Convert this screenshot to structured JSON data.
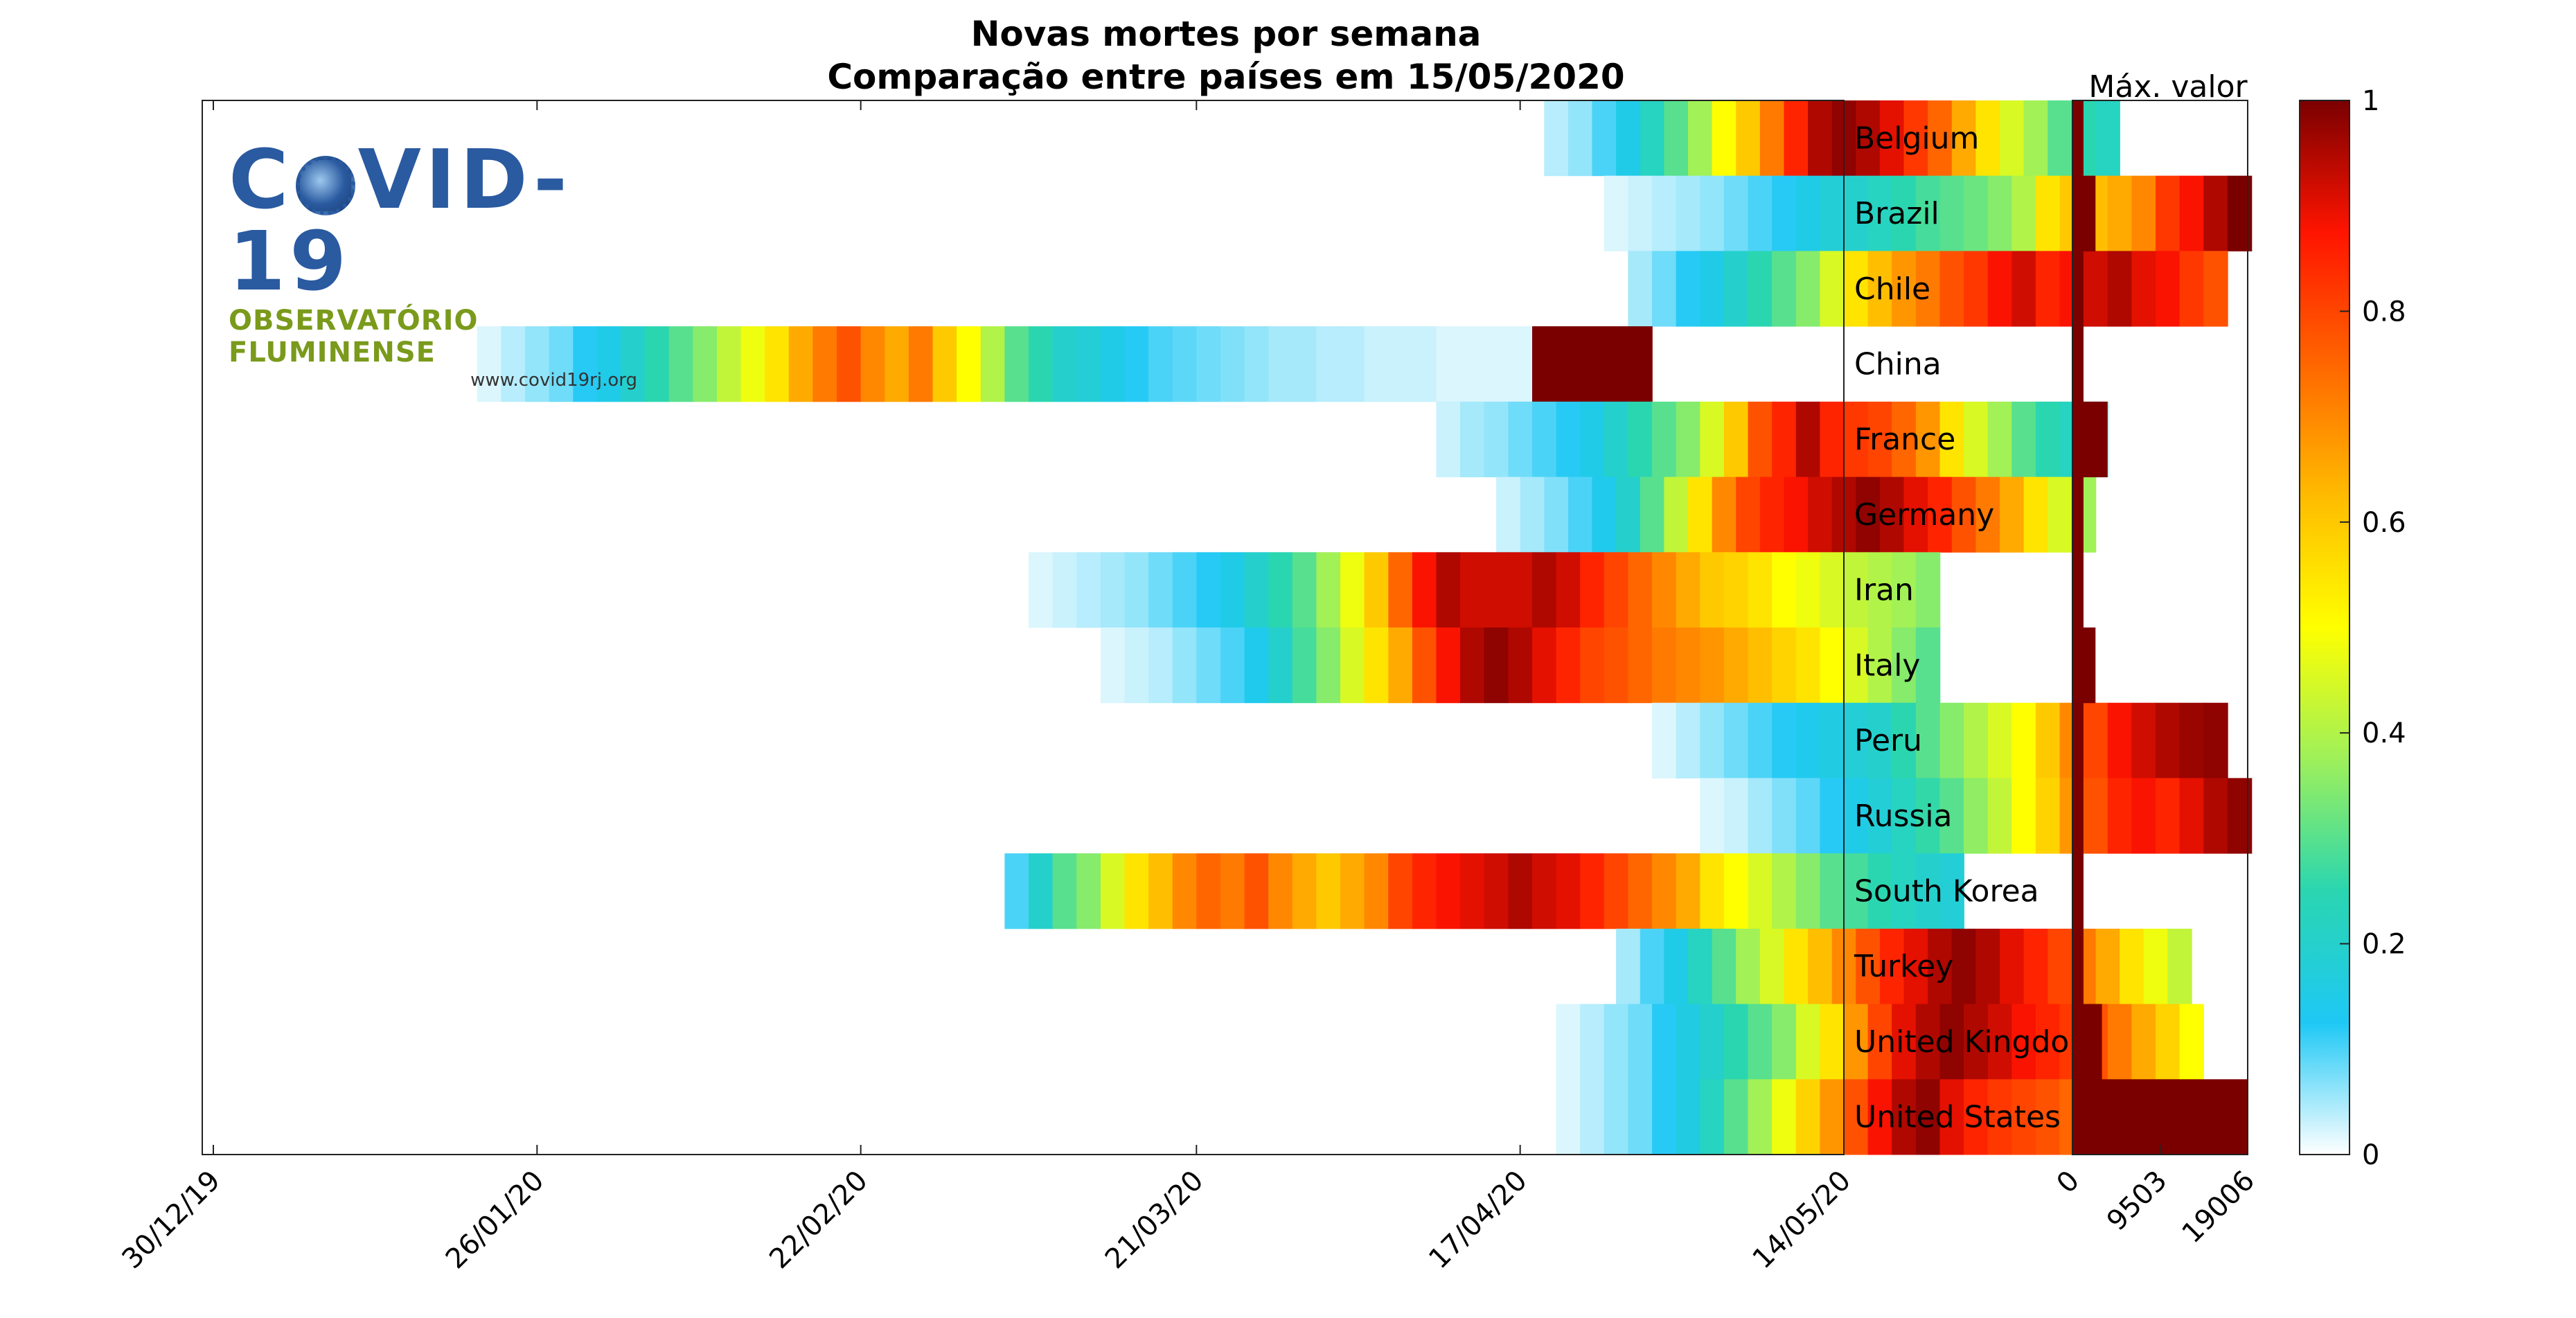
{
  "chart_data": {
    "type": "heatmap",
    "title": "Novas mortes por semana",
    "subtitle": "Comparação entre países em 15/05/2020",
    "x_ticks": [
      "30/12/19",
      "26/01/20",
      "22/02/20",
      "21/03/20",
      "17/04/20",
      "14/05/20"
    ],
    "x_range": [
      "30/12/19",
      "14/05/20"
    ],
    "countries": [
      "Belgium",
      "Brazil",
      "Chile",
      "China",
      "France",
      "Germany",
      "Iran",
      "Italy",
      "Peru",
      "Russia",
      "South Korea",
      "Turkey",
      "United Kingdom",
      "United States"
    ],
    "normalized_weekly_deaths": [
      {
        "start_day": 111,
        "values": [
          0.04,
          0.06,
          0.1,
          0.15,
          0.22,
          0.3,
          0.38,
          0.5,
          0.6,
          0.72,
          0.85,
          0.95,
          0.98,
          0.95,
          0.9,
          0.82,
          0.75,
          0.65,
          0.55,
          0.45,
          0.38,
          0.3,
          0.25,
          0.22
        ]
      },
      {
        "start_day": 116,
        "values": [
          0.02,
          0.03,
          0.04,
          0.05,
          0.06,
          0.08,
          0.1,
          0.12,
          0.15,
          0.18,
          0.2,
          0.22,
          0.25,
          0.28,
          0.3,
          0.32,
          0.35,
          0.4,
          0.55,
          0.6,
          0.62,
          0.65,
          0.7,
          0.82,
          0.88,
          0.95,
          1.0
        ]
      },
      {
        "start_day": 118,
        "values": [
          0.05,
          0.08,
          0.12,
          0.15,
          0.2,
          0.25,
          0.3,
          0.35,
          0.45,
          0.55,
          0.62,
          0.68,
          0.72,
          0.78,
          0.82,
          0.88,
          0.92,
          0.85,
          0.88,
          0.92,
          0.95,
          0.9,
          0.88,
          0.82,
          0.78
        ]
      },
      {
        "start_day": 22,
        "values": [
          0.02,
          0.04,
          0.06,
          0.08,
          0.12,
          0.15,
          0.2,
          0.25,
          0.3,
          0.35,
          0.42,
          0.48,
          0.55,
          0.65,
          0.72,
          0.78,
          0.7,
          0.65,
          0.72,
          0.6,
          0.5,
          0.4,
          0.3,
          0.25,
          0.2,
          0.18,
          0.15,
          0.12,
          0.1,
          0.09,
          0.08,
          0.07,
          0.06,
          0.05,
          0.05,
          0.04,
          0.04,
          0.03,
          0.03,
          0.03,
          0.02,
          0.02,
          0.02,
          0.02,
          1.0,
          1.0,
          1.0,
          1.0,
          1.0
        ]
      },
      {
        "start_day": 102,
        "values": [
          0.03,
          0.05,
          0.06,
          0.08,
          0.1,
          0.12,
          0.15,
          0.2,
          0.25,
          0.3,
          0.35,
          0.45,
          0.6,
          0.78,
          0.85,
          0.95,
          0.85,
          0.82,
          0.8,
          0.75,
          0.68,
          0.55,
          0.45,
          0.38,
          0.3,
          0.25,
          0.22,
          0.2
        ]
      },
      {
        "start_day": 107,
        "values": [
          0.03,
          0.05,
          0.07,
          0.1,
          0.14,
          0.2,
          0.3,
          0.42,
          0.55,
          0.7,
          0.8,
          0.85,
          0.88,
          0.92,
          0.95,
          0.98,
          0.95,
          0.9,
          0.85,
          0.78,
          0.72,
          0.65,
          0.55,
          0.45,
          0.38
        ]
      },
      {
        "start_day": 68,
        "values": [
          0.02,
          0.03,
          0.04,
          0.05,
          0.06,
          0.08,
          0.1,
          0.12,
          0.15,
          0.2,
          0.25,
          0.3,
          0.38,
          0.48,
          0.6,
          0.75,
          0.88,
          0.95,
          0.92,
          0.92,
          0.92,
          0.95,
          0.92,
          0.85,
          0.8,
          0.75,
          0.7,
          0.65,
          0.6,
          0.58,
          0.55,
          0.5,
          0.48,
          0.45,
          0.42,
          0.4,
          0.38,
          0.35
        ]
      },
      {
        "start_day": 74,
        "values": [
          0.02,
          0.03,
          0.04,
          0.06,
          0.08,
          0.1,
          0.14,
          0.2,
          0.28,
          0.35,
          0.45,
          0.55,
          0.65,
          0.78,
          0.88,
          0.95,
          0.98,
          0.95,
          0.9,
          0.85,
          0.8,
          0.78,
          0.75,
          0.72,
          0.7,
          0.68,
          0.65,
          0.62,
          0.58,
          0.55,
          0.5,
          0.45,
          0.4,
          0.35,
          0.3
        ]
      },
      {
        "start_day": 120,
        "values": [
          0.02,
          0.04,
          0.06,
          0.08,
          0.1,
          0.12,
          0.14,
          0.16,
          0.18,
          0.2,
          0.25,
          0.3,
          0.35,
          0.4,
          0.45,
          0.5,
          0.6,
          0.7,
          0.8,
          0.88,
          0.92,
          0.95,
          0.97,
          0.98
        ]
      },
      {
        "start_day": 124,
        "values": [
          0.02,
          0.03,
          0.05,
          0.07,
          0.09,
          0.12,
          0.15,
          0.18,
          0.22,
          0.26,
          0.3,
          0.36,
          0.42,
          0.5,
          0.58,
          0.68,
          0.78,
          0.85,
          0.88,
          0.85,
          0.9,
          0.95,
          0.98
        ]
      },
      {
        "start_day": 66,
        "values": [
          0.1,
          0.2,
          0.3,
          0.35,
          0.45,
          0.55,
          0.62,
          0.7,
          0.75,
          0.72,
          0.78,
          0.7,
          0.65,
          0.6,
          0.65,
          0.7,
          0.8,
          0.85,
          0.88,
          0.9,
          0.92,
          0.95,
          0.92,
          0.9,
          0.85,
          0.8,
          0.75,
          0.7,
          0.65,
          0.55,
          0.5,
          0.45,
          0.4,
          0.35,
          0.3,
          0.28,
          0.25,
          0.22,
          0.2,
          0.18
        ]
      },
      {
        "start_day": 117,
        "values": [
          0.05,
          0.1,
          0.15,
          0.22,
          0.3,
          0.38,
          0.45,
          0.55,
          0.62,
          0.7,
          0.78,
          0.85,
          0.9,
          0.95,
          0.98,
          0.95,
          0.9,
          0.85,
          0.8,
          0.72,
          0.65,
          0.55,
          0.48,
          0.42
        ]
      },
      {
        "start_day": 112,
        "values": [
          0.02,
          0.04,
          0.06,
          0.08,
          0.12,
          0.16,
          0.2,
          0.25,
          0.3,
          0.35,
          0.45,
          0.55,
          0.68,
          0.8,
          0.9,
          0.95,
          0.98,
          0.95,
          0.92,
          0.88,
          0.85,
          0.82,
          0.78,
          0.72,
          0.65,
          0.58,
          0.5
        ]
      },
      {
        "start_day": 112,
        "values": [
          0.02,
          0.04,
          0.06,
          0.08,
          0.12,
          0.16,
          0.22,
          0.3,
          0.38,
          0.48,
          0.58,
          0.68,
          0.78,
          0.88,
          0.95,
          0.98,
          0.9,
          0.85,
          0.82,
          0.8,
          0.78,
          0.75,
          0.72,
          0.7,
          0.68,
          0.65
        ]
      }
    ],
    "max_label": "Máx. valor",
    "max_ticks": [
      "0",
      "9503",
      "19006"
    ],
    "max_range": [
      0,
      19006
    ],
    "max_values": [
      1200,
      2500,
      600,
      600,
      3800,
      600,
      600,
      2500,
      600,
      600,
      300,
      600,
      3200,
      19006
    ],
    "colorbar_ticks": [
      "0",
      "0.2",
      "0.4",
      "0.6",
      "0.8",
      "1"
    ],
    "colorbar_range": [
      0,
      1
    ],
    "colormap": [
      "#ffffff",
      "#1ec8f5",
      "#2ad6b0",
      "#9ef05a",
      "#ffff00",
      "#ffbb00",
      "#ff6600",
      "#ff1400",
      "#7a0000"
    ]
  },
  "logo": {
    "title": "COVID-19",
    "subtitle": "OBSERVATÓRIO FLUMINENSE",
    "url": "www.covid19rj.org"
  }
}
